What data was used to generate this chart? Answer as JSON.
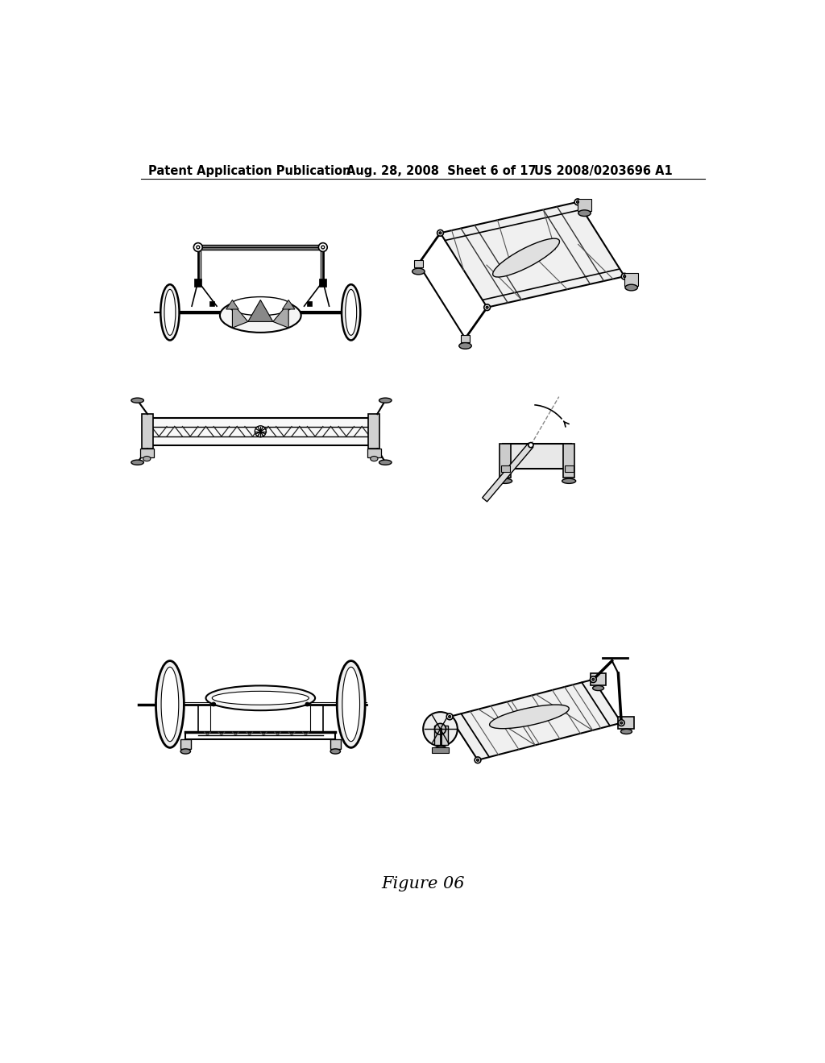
{
  "background_color": "#ffffff",
  "header_left": "Patent Application Publication",
  "header_mid": "Aug. 28, 2008  Sheet 6 of 17",
  "header_right": "US 2008/0203696 A1",
  "footer_text": "Figure 06",
  "header_fontsize": 10.5,
  "footer_fontsize": 15,
  "page_width": 10.24,
  "page_height": 13.2
}
